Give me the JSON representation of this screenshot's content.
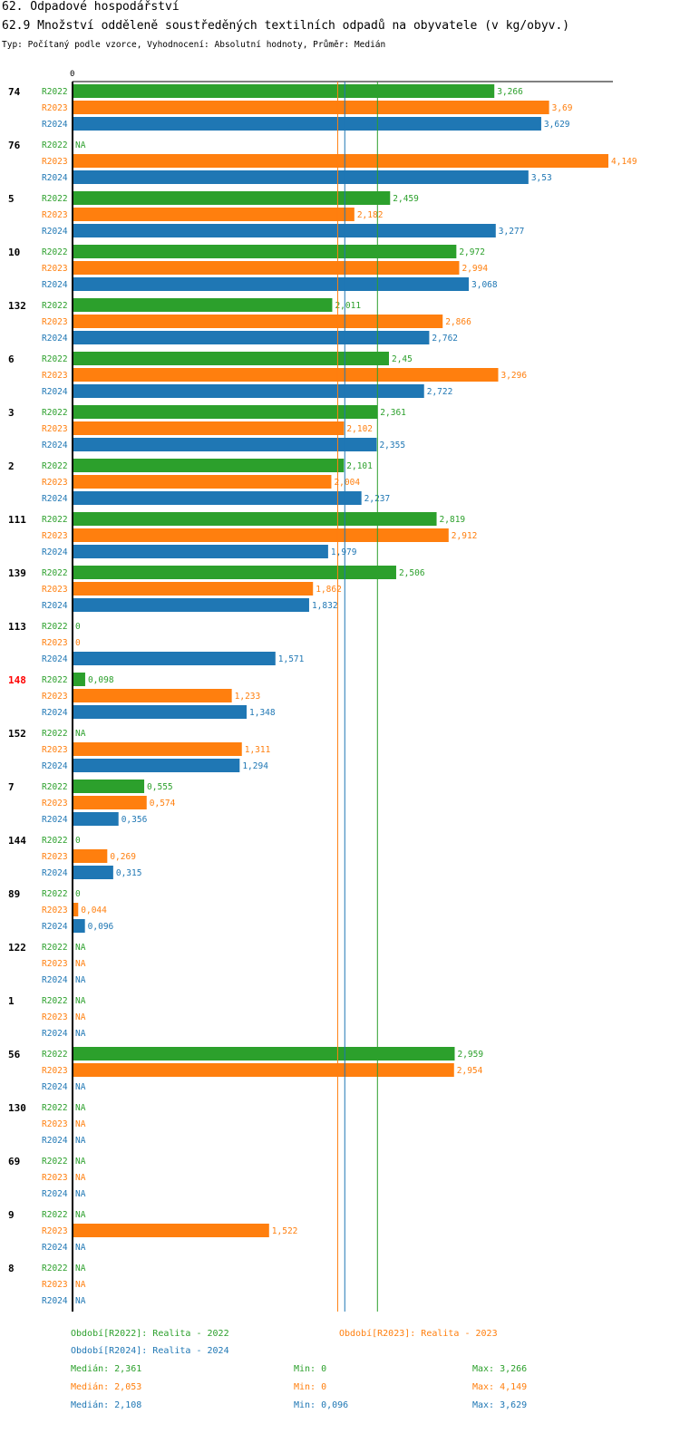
{
  "header": {
    "title": "62. Odpadové hospodářství",
    "subtitle": "62.9 Množství odděleně soustředěných textilních odpadů na obyvatele (v kg/obyv.)",
    "type_line": "Typ: Počítaný podle vzorce, Vyhodnocení: Absolutní hodnoty, Průměr: Medián"
  },
  "colors": {
    "R2022": "#2ca02c",
    "R2023": "#ff7f0e",
    "R2024": "#1f77b4",
    "highlight": "#ff0000"
  },
  "chart_data": {
    "type": "bar",
    "orientation": "horizontal",
    "axis_zero_label": "0",
    "xlim": [
      0,
      4.149
    ],
    "highlighted_category": "148",
    "series_names": [
      "R2022",
      "R2023",
      "R2024"
    ],
    "categories": [
      "74",
      "76",
      "5",
      "10",
      "132",
      "6",
      "3",
      "2",
      "111",
      "139",
      "113",
      "148",
      "152",
      "7",
      "144",
      "89",
      "122",
      "1",
      "56",
      "130",
      "69",
      "9",
      "8"
    ],
    "series": [
      {
        "name": "R2022",
        "values": [
          3.266,
          null,
          2.459,
          2.972,
          2.011,
          2.45,
          2.361,
          2.101,
          2.819,
          2.506,
          0,
          0.098,
          null,
          0.555,
          0,
          0,
          null,
          null,
          2.959,
          null,
          null,
          null,
          null
        ],
        "labels": [
          "3,266",
          "NA",
          "2,459",
          "2,972",
          "2,011",
          "2,45",
          "2,361",
          "2,101",
          "2,819",
          "2,506",
          "0",
          "0,098",
          "NA",
          "0,555",
          "0",
          "0",
          "NA",
          "NA",
          "2,959",
          "NA",
          "NA",
          "NA",
          "NA"
        ]
      },
      {
        "name": "R2023",
        "values": [
          3.69,
          4.149,
          2.182,
          2.994,
          2.866,
          3.296,
          2.102,
          2.004,
          2.912,
          1.862,
          0,
          1.233,
          1.311,
          0.574,
          0.269,
          0.044,
          null,
          null,
          2.954,
          null,
          null,
          1.522,
          null
        ],
        "labels": [
          "3,69",
          "4,149",
          "2,182",
          "2,994",
          "2,866",
          "3,296",
          "2,102",
          "2,004",
          "2,912",
          "1,862",
          "0",
          "1,233",
          "1,311",
          "0,574",
          "0,269",
          "0,044",
          "NA",
          "NA",
          "2,954",
          "NA",
          "NA",
          "1,522",
          "NA"
        ]
      },
      {
        "name": "R2024",
        "values": [
          3.629,
          3.53,
          3.277,
          3.068,
          2.762,
          2.722,
          2.355,
          2.237,
          1.979,
          1.832,
          1.571,
          1.348,
          1.294,
          0.356,
          0.315,
          0.096,
          null,
          null,
          null,
          null,
          null,
          null,
          null
        ],
        "labels": [
          "3,629",
          "3,53",
          "3,277",
          "3,068",
          "2,762",
          "2,722",
          "2,355",
          "2,237",
          "1,979",
          "1,832",
          "1,571",
          "1,348",
          "1,294",
          "0,356",
          "0,315",
          "0,096",
          "NA",
          "NA",
          "NA",
          "NA",
          "NA",
          "NA",
          "NA"
        ]
      }
    ],
    "medians": {
      "R2022": 2.361,
      "R2023": 2.053,
      "R2024": 2.108
    }
  },
  "legend": {
    "periods": {
      "R2022": "Období[R2022]: Realita - 2022",
      "R2023": "Období[R2023]: Realita - 2023",
      "R2024": "Období[R2024]: Realita - 2024"
    },
    "stats": [
      {
        "series": "R2022",
        "median": "Medián: 2,361",
        "min": "Min: 0",
        "max": "Max: 3,266"
      },
      {
        "series": "R2023",
        "median": "Medián: 2,053",
        "min": "Min: 0",
        "max": "Max: 4,149"
      },
      {
        "series": "R2024",
        "median": "Medián: 2,108",
        "min": "Min: 0,096",
        "max": "Max: 3,629"
      }
    ]
  }
}
